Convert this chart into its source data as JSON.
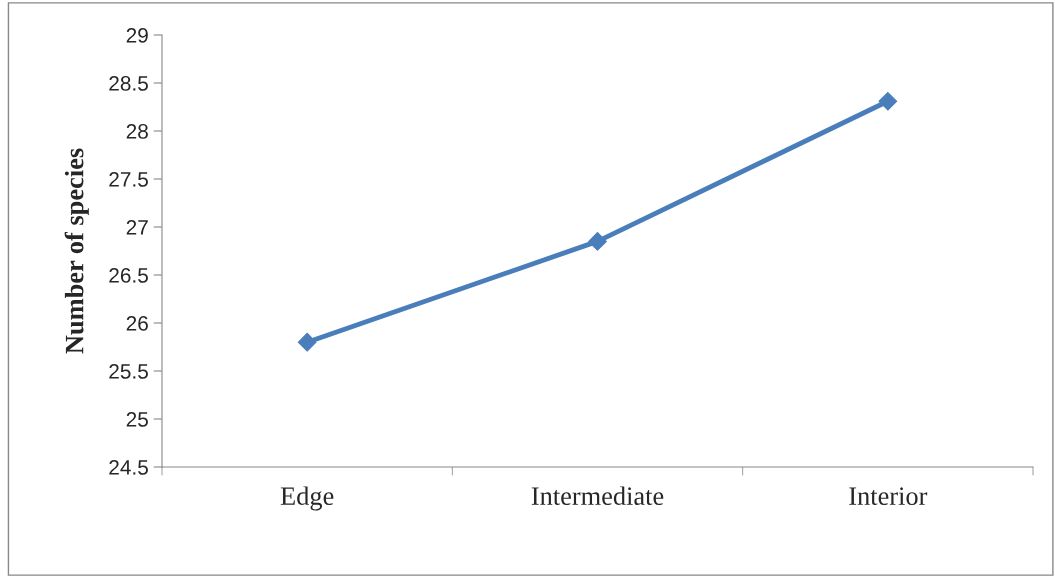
{
  "chart_data": {
    "type": "line",
    "ylabel": "Number of species",
    "categories": [
      "Edge",
      "Intermediate",
      "Interior"
    ],
    "series": [
      {
        "color": "#4a7ebb",
        "values": [
          25.8,
          26.85,
          28.31
        ]
      }
    ],
    "ylim": [
      24.5,
      29
    ],
    "yticks": [
      24.5,
      25,
      25.5,
      26,
      26.5,
      27,
      27.5,
      28,
      28.5,
      29
    ],
    "marker": "diamond",
    "line_style": "solid"
  }
}
